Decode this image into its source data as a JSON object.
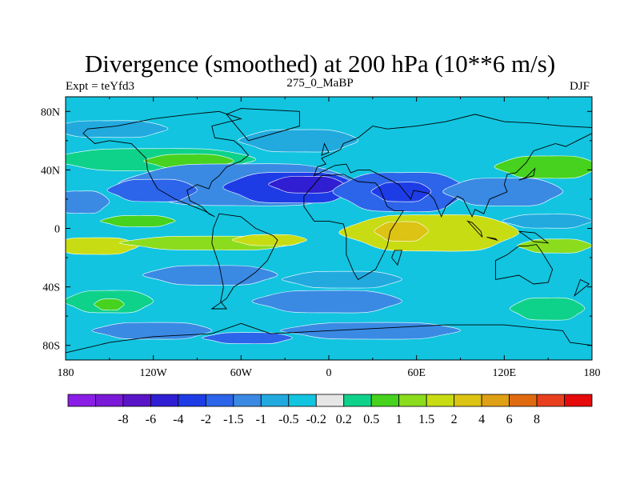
{
  "chart_data": {
    "type": "heatmap",
    "title": "Divergence (smoothed) at 200 hPa (10**6 m/s)",
    "left_subtitle": "Expt = teYfd3",
    "center_subtitle": "275_0_MaBP",
    "right_subtitle": "DJF",
    "x_range": [
      -180,
      180
    ],
    "y_range": [
      -90,
      90
    ],
    "x_ticks": [
      {
        "value": -180,
        "label": "180"
      },
      {
        "value": -120,
        "label": "120W"
      },
      {
        "value": -60,
        "label": "60W"
      },
      {
        "value": 0,
        "label": "0"
      },
      {
        "value": 60,
        "label": "60E"
      },
      {
        "value": 120,
        "label": "120E"
      },
      {
        "value": 180,
        "label": "180"
      }
    ],
    "y_ticks": [
      {
        "value": 80,
        "label": "80N"
      },
      {
        "value": 40,
        "label": "40N"
      },
      {
        "value": 0,
        "label": "0"
      },
      {
        "value": -40,
        "label": "40S"
      },
      {
        "value": -80,
        "label": "80S"
      }
    ],
    "colorbar": {
      "colors": [
        "#8a1ee6",
        "#7a19d8",
        "#5a14c8",
        "#2f1ed2",
        "#1e3ce6",
        "#2c64ea",
        "#3a8ae4",
        "#22aadf",
        "#12c4e0",
        "#e6e6e6",
        "#0fd28a",
        "#46d21e",
        "#8cdc1e",
        "#c8dc14",
        "#dcc314",
        "#dea014",
        "#e06a10",
        "#e8401e",
        "#e60a0a"
      ],
      "labels": [
        "-8",
        "-6",
        "-4",
        "-2",
        "-1.5",
        "-1",
        "-0.5",
        "-0.2",
        "0.2",
        "0.5",
        "1",
        "1.5",
        "2",
        "4",
        "6",
        "8"
      ]
    },
    "features": [
      {
        "level": 0.5,
        "lon": -120,
        "lat": 47,
        "rlon": 70,
        "rlat": 8
      },
      {
        "level": 1,
        "lon": -95,
        "lat": 46,
        "rlon": 30,
        "rlat": 5
      },
      {
        "level": 2,
        "lon": 160,
        "lat": 42,
        "rlon": 20,
        "rlat": 7
      },
      {
        "level": 1,
        "lon": 150,
        "lat": 42,
        "rlon": 35,
        "rlat": 8
      },
      {
        "level": -0.5,
        "lon": -150,
        "lat": 68,
        "rlon": 40,
        "rlat": 6
      },
      {
        "level": -0.5,
        "lon": -20,
        "lat": 60,
        "rlon": 40,
        "rlat": 8
      },
      {
        "level": -1,
        "lon": -60,
        "lat": 30,
        "rlon": 80,
        "rlat": 15
      },
      {
        "level": -2,
        "lon": -25,
        "lat": 28,
        "rlon": 45,
        "rlat": 11
      },
      {
        "level": -4,
        "lon": -15,
        "lat": 30,
        "rlon": 25,
        "rlat": 6
      },
      {
        "level": -1.5,
        "lon": 50,
        "lat": 25,
        "rlon": 45,
        "rlat": 14
      },
      {
        "level": -2,
        "lon": 50,
        "lat": 25,
        "rlon": 20,
        "rlat": 7
      },
      {
        "level": -1,
        "lon": 120,
        "lat": 25,
        "rlon": 40,
        "rlat": 10
      },
      {
        "level": -1.5,
        "lon": -120,
        "lat": 26,
        "rlon": 30,
        "rlat": 8
      },
      {
        "level": -1,
        "lon": -170,
        "lat": 18,
        "rlon": 20,
        "rlat": 8
      },
      {
        "level": -0.5,
        "lon": 150,
        "lat": 5,
        "rlon": 30,
        "rlat": 5
      },
      {
        "level": 1,
        "lon": -130,
        "lat": 5,
        "rlon": 25,
        "rlat": 4
      },
      {
        "level": 2,
        "lon": -160,
        "lat": -12,
        "rlon": 30,
        "rlat": 6
      },
      {
        "level": 1.5,
        "lon": -80,
        "lat": -10,
        "rlon": 60,
        "rlat": 5
      },
      {
        "level": 2,
        "lon": -40,
        "lat": -8,
        "rlon": 25,
        "rlat": 4
      },
      {
        "level": 2,
        "lon": 70,
        "lat": -3,
        "rlon": 60,
        "rlat": 13
      },
      {
        "level": 4,
        "lon": 50,
        "lat": -2,
        "rlon": 18,
        "rlat": 7
      },
      {
        "level": 1.5,
        "lon": 155,
        "lat": -12,
        "rlon": 25,
        "rlat": 5
      },
      {
        "level": -1,
        "lon": -80,
        "lat": -32,
        "rlon": 45,
        "rlat": 7
      },
      {
        "level": -0.5,
        "lon": 10,
        "lat": -35,
        "rlon": 40,
        "rlat": 6
      },
      {
        "level": -1,
        "lon": 0,
        "lat": -50,
        "rlon": 50,
        "rlat": 8
      },
      {
        "level": 0.5,
        "lon": -150,
        "lat": -50,
        "rlon": 30,
        "rlat": 8
      },
      {
        "level": 1,
        "lon": -150,
        "lat": -52,
        "rlon": 10,
        "rlat": 4
      },
      {
        "level": 0.5,
        "lon": 150,
        "lat": -55,
        "rlon": 25,
        "rlat": 8
      },
      {
        "level": -1,
        "lon": -120,
        "lat": -70,
        "rlon": 40,
        "rlat": 6
      },
      {
        "level": -1,
        "lon": 30,
        "lat": -70,
        "rlon": 60,
        "rlat": 6
      },
      {
        "level": -1.5,
        "lon": -55,
        "lat": -75,
        "rlon": 30,
        "rlat": 4
      }
    ],
    "coastlines": [
      [
        [
          -80,
          -55
        ],
        [
          -70,
          -48
        ],
        [
          -65,
          -40
        ],
        [
          -57,
          -35
        ],
        [
          -50,
          -30
        ],
        [
          -42,
          -22
        ],
        [
          -35,
          -8
        ],
        [
          -38,
          -5
        ],
        [
          -50,
          0
        ],
        [
          -60,
          8
        ],
        [
          -75,
          10
        ],
        [
          -79,
          0
        ],
        [
          -80,
          -10
        ],
        [
          -75,
          -25
        ],
        [
          -72,
          -40
        ],
        [
          -74,
          -50
        ],
        [
          -70,
          -55
        ],
        [
          -80,
          -55
        ]
      ],
      [
        [
          -120,
          32
        ],
        [
          -117,
          27
        ],
        [
          -105,
          20
        ],
        [
          -95,
          16
        ],
        [
          -85,
          12
        ],
        [
          -78,
          8
        ],
        [
          -82,
          10
        ],
        [
          -87,
          15
        ],
        [
          -95,
          19
        ],
        [
          -97,
          26
        ],
        [
          -90,
          30
        ],
        [
          -82,
          27
        ],
        [
          -80,
          32
        ],
        [
          -75,
          36
        ],
        [
          -70,
          42
        ],
        [
          -60,
          46
        ],
        [
          -55,
          50
        ],
        [
          -60,
          56
        ],
        [
          -65,
          60
        ],
        [
          -78,
          62
        ],
        [
          -80,
          70
        ],
        [
          -60,
          75
        ],
        [
          -75,
          80
        ],
        [
          -95,
          78
        ],
        [
          -120,
          75
        ],
        [
          -145,
          70
        ],
        [
          -165,
          68
        ],
        [
          -168,
          65
        ],
        [
          -160,
          58
        ],
        [
          -150,
          60
        ],
        [
          -135,
          58
        ],
        [
          -125,
          48
        ],
        [
          -124,
          40
        ],
        [
          -120,
          32
        ]
      ],
      [
        [
          -17,
          15
        ],
        [
          -17,
          22
        ],
        [
          -10,
          30
        ],
        [
          -5,
          36
        ],
        [
          10,
          37
        ],
        [
          20,
          32
        ],
        [
          32,
          31
        ],
        [
          35,
          27
        ],
        [
          40,
          15
        ],
        [
          45,
          12
        ],
        [
          51,
          12
        ],
        [
          42,
          -2
        ],
        [
          40,
          -12
        ],
        [
          35,
          -22
        ],
        [
          32,
          -28
        ],
        [
          20,
          -35
        ],
        [
          17,
          -30
        ],
        [
          12,
          -18
        ],
        [
          12,
          -5
        ],
        [
          10,
          3
        ],
        [
          0,
          5
        ],
        [
          -10,
          5
        ],
        [
          -17,
          15
        ]
      ],
      [
        [
          -10,
          36
        ],
        [
          -8,
          42
        ],
        [
          -2,
          44
        ],
        [
          -5,
          48
        ],
        [
          0,
          50
        ],
        [
          8,
          54
        ],
        [
          10,
          58
        ],
        [
          20,
          62
        ],
        [
          30,
          70
        ],
        [
          40,
          68
        ],
        [
          60,
          70
        ],
        [
          80,
          73
        ],
        [
          100,
          78
        ],
        [
          120,
          73
        ],
        [
          140,
          72
        ],
        [
          160,
          70
        ],
        [
          180,
          69
        ],
        [
          180,
          65
        ],
        [
          170,
          60
        ],
        [
          162,
          56
        ],
        [
          155,
          58
        ],
        [
          140,
          53
        ],
        [
          135,
          45
        ],
        [
          128,
          38
        ],
        [
          122,
          37
        ],
        [
          120,
          30
        ],
        [
          122,
          25
        ],
        [
          110,
          20
        ],
        [
          106,
          10
        ],
        [
          100,
          13
        ],
        [
          98,
          8
        ],
        [
          92,
          20
        ],
        [
          88,
          22
        ],
        [
          80,
          15
        ],
        [
          77,
          8
        ],
        [
          72,
          20
        ],
        [
          68,
          24
        ],
        [
          58,
          26
        ],
        [
          56,
          20
        ],
        [
          48,
          30
        ],
        [
          36,
          36
        ],
        [
          28,
          40
        ],
        [
          20,
          40
        ],
        [
          15,
          38
        ],
        [
          12,
          44
        ],
        [
          4,
          43
        ],
        [
          -10,
          36
        ]
      ],
      [
        [
          114,
          -22
        ],
        [
          114,
          -35
        ],
        [
          130,
          -32
        ],
        [
          140,
          -38
        ],
        [
          150,
          -37
        ],
        [
          153,
          -28
        ],
        [
          145,
          -15
        ],
        [
          142,
          -11
        ],
        [
          136,
          -12
        ],
        [
          130,
          -12
        ],
        [
          122,
          -18
        ],
        [
          114,
          -22
        ]
      ],
      [
        [
          -60,
          -65
        ],
        [
          -40,
          -72
        ],
        [
          0,
          -70
        ],
        [
          40,
          -68
        ],
        [
          80,
          -66
        ],
        [
          120,
          -66
        ],
        [
          160,
          -70
        ],
        [
          165,
          -78
        ],
        [
          180,
          -80
        ],
        [
          180,
          -90
        ],
        [
          -180,
          -90
        ],
        [
          -180,
          -85
        ],
        [
          -150,
          -78
        ],
        [
          -120,
          -74
        ],
        [
          -80,
          -72
        ],
        [
          -60,
          -65
        ]
      ],
      [
        [
          45,
          -15
        ],
        [
          50,
          -15
        ],
        [
          47,
          -25
        ],
        [
          43,
          -20
        ],
        [
          45,
          -15
        ]
      ],
      [
        [
          95,
          5
        ],
        [
          105,
          -6
        ],
        [
          104,
          -2
        ],
        [
          98,
          4
        ],
        [
          95,
          5
        ]
      ],
      [
        [
          108,
          -6
        ],
        [
          115,
          -8
        ],
        [
          114,
          -7
        ],
        [
          108,
          -6
        ]
      ],
      [
        [
          130,
          -2
        ],
        [
          141,
          -3
        ],
        [
          150,
          -10
        ],
        [
          140,
          -9
        ],
        [
          133,
          -4
        ],
        [
          130,
          -2
        ]
      ],
      [
        [
          -55,
          60
        ],
        [
          -20,
          70
        ],
        [
          -20,
          80
        ],
        [
          -60,
          82
        ],
        [
          -70,
          78
        ],
        [
          -55,
          60
        ]
      ],
      [
        [
          172,
          -35
        ],
        [
          178,
          -38
        ],
        [
          168,
          -46
        ],
        [
          172,
          -35
        ]
      ],
      [
        [
          130,
          33
        ],
        [
          135,
          35
        ],
        [
          141,
          41
        ],
        [
          140,
          36
        ],
        [
          130,
          33
        ]
      ],
      [
        [
          -5,
          50
        ],
        [
          0,
          52
        ],
        [
          -3,
          58
        ],
        [
          -5,
          50
        ]
      ]
    ]
  }
}
